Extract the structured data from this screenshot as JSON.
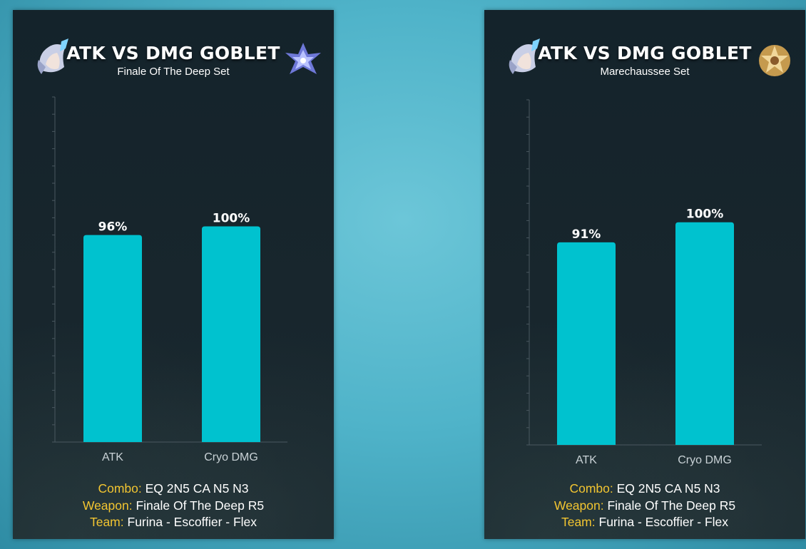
{
  "panels": [
    {
      "title": "ATK VS DMG GOBLET",
      "subtitle": "Finale Of The  Deep Set",
      "avatar_icon": "character-portrait-icon",
      "artifact_icon": "goblet-artifact-icon",
      "chart_data": {
        "type": "bar",
        "categories": [
          "ATK",
          "Cryo DMG"
        ],
        "values": [
          96,
          100
        ],
        "labels": [
          "96%",
          "100%"
        ],
        "ylim": [
          0,
          160
        ],
        "grid": false,
        "bar_color": "#00c2cf"
      },
      "info": [
        {
          "key": "Combo:",
          "value": "EQ 2N5 CA  N5  N3"
        },
        {
          "key": "Weapon:",
          "value": "Finale Of The  Deep  R5"
        },
        {
          "key": "Team:",
          "value": "Furina -  Escoffier -  Flex"
        }
      ]
    },
    {
      "title": "ATK VS DMG GOBLET",
      "subtitle": "Marechaussee Set",
      "avatar_icon": "character-portrait-icon",
      "artifact_icon": "goblet-artifact-icon",
      "chart_data": {
        "type": "bar",
        "categories": [
          "ATK",
          "Cryo DMG"
        ],
        "values": [
          91,
          100
        ],
        "labels": [
          "91%",
          "100%"
        ],
        "ylim": [
          0,
          155
        ],
        "grid": false,
        "bar_color": "#00c2cf"
      },
      "info": [
        {
          "key": "Combo:",
          "value": "EQ 2N5 CA  N5  N3"
        },
        {
          "key": "Weapon:",
          "value": "Finale Of The  Deep  R5"
        },
        {
          "key": "Team:",
          "value": "Furina -  Escoffier -  Flex"
        }
      ]
    }
  ],
  "colors": {
    "accent_key": "#f2c531",
    "bar": "#00c2cf",
    "panel_bg": "#17252c"
  }
}
